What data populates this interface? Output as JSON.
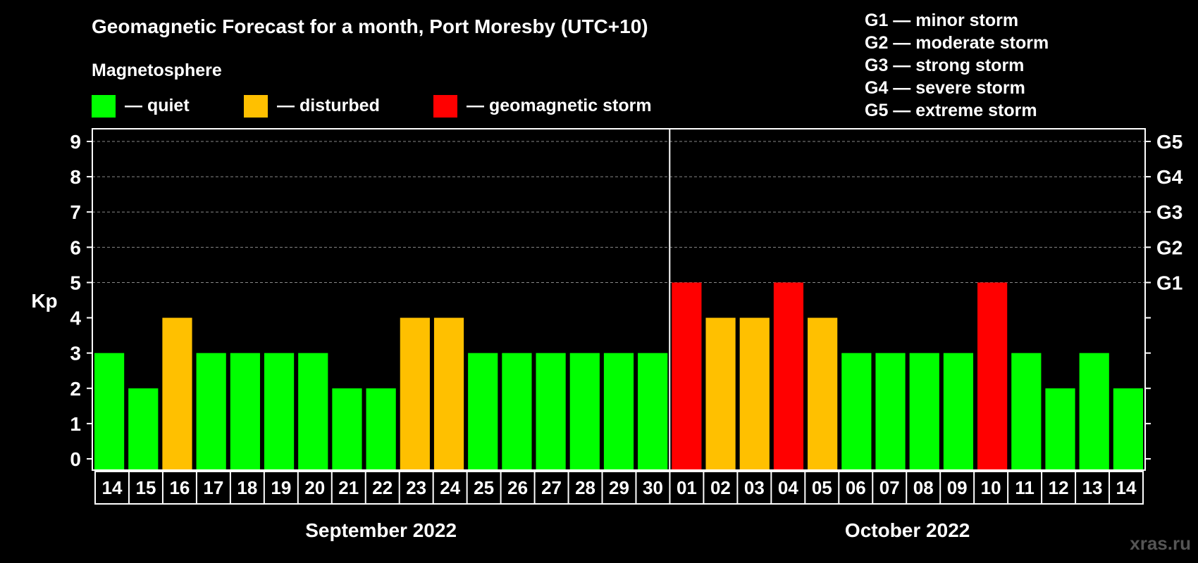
{
  "chart_data": {
    "type": "bar",
    "title": "Geomagnetic Forecast for a month, Port Moresby (UTC+10)",
    "legend": {
      "heading": "Magnetosphere",
      "entries": [
        {
          "label": "— quiet",
          "color": "#00FF00"
        },
        {
          "label": "— disturbed",
          "color": "#FFC000"
        },
        {
          "label": "— geomagnetic storm",
          "color": "#FF0000"
        }
      ]
    },
    "storm_scale": [
      "G1 — minor storm",
      "G2 — moderate storm",
      "G3 — strong storm",
      "G4 — severe storm",
      "G5 — extreme storm"
    ],
    "ylabel": "Kp",
    "ylim": [
      0,
      9
    ],
    "yticks": [
      "0",
      "1",
      "2",
      "3",
      "4",
      "5",
      "6",
      "7",
      "8",
      "9"
    ],
    "right_ticks": [
      {
        "kp": 5,
        "label": "G1"
      },
      {
        "kp": 6,
        "label": "G2"
      },
      {
        "kp": 7,
        "label": "G3"
      },
      {
        "kp": 8,
        "label": "G4"
      },
      {
        "kp": 9,
        "label": "G5"
      }
    ],
    "categories": [
      "14",
      "15",
      "16",
      "17",
      "18",
      "19",
      "20",
      "21",
      "22",
      "23",
      "24",
      "25",
      "26",
      "27",
      "28",
      "29",
      "30",
      "01",
      "02",
      "03",
      "04",
      "05",
      "06",
      "07",
      "08",
      "09",
      "10",
      "11",
      "12",
      "13",
      "14"
    ],
    "values": [
      3,
      2,
      4,
      3,
      3,
      3,
      3,
      2,
      2,
      4,
      4,
      3,
      3,
      3,
      3,
      3,
      3,
      5,
      4,
      4,
      5,
      4,
      3,
      3,
      3,
      3,
      5,
      3,
      2,
      3,
      2
    ],
    "months": [
      {
        "label": "September 2022",
        "count": 17
      },
      {
        "label": "October 2022",
        "count": 14
      }
    ],
    "color_thresholds": {
      "quiet_max": 3,
      "disturbed_max": 4
    },
    "colors": {
      "quiet": "#00FF00",
      "disturbed": "#FFC000",
      "storm": "#FF0000",
      "grid": "#888888",
      "axis": "#FFFFFF"
    },
    "grid": true
  },
  "watermark": "xras.ru"
}
